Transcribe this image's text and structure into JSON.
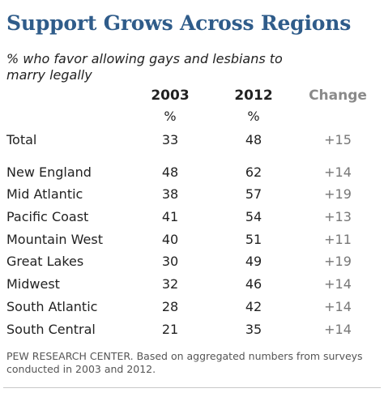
{
  "chart_data": {
    "type": "table",
    "title": "Support Grows Across Regions",
    "subtitle": "% who favor allowing gays and lesbians to marry legally",
    "columns": [
      "2003",
      "2012",
      "Change"
    ],
    "units": [
      "%",
      "%"
    ],
    "rows": [
      {
        "label": "Total",
        "v2003": "33",
        "v2012": "48",
        "change": "+15"
      },
      {
        "label": "New England",
        "v2003": "48",
        "v2012": "62",
        "change": "+14"
      },
      {
        "label": "Mid Atlantic",
        "v2003": "38",
        "v2012": "57",
        "change": "+19"
      },
      {
        "label": "Pacific Coast",
        "v2003": "41",
        "v2012": "54",
        "change": "+13"
      },
      {
        "label": "Mountain West",
        "v2003": "40",
        "v2012": "51",
        "change": "+11"
      },
      {
        "label": "Great Lakes",
        "v2003": "30",
        "v2012": "49",
        "change": "+19"
      },
      {
        "label": "Midwest",
        "v2003": "32",
        "v2012": "46",
        "change": "+14"
      },
      {
        "label": "South Atlantic",
        "v2003": "28",
        "v2012": "42",
        "change": "+14"
      },
      {
        "label": "South Central",
        "v2003": "21",
        "v2012": "35",
        "change": "+14"
      }
    ],
    "source": "PEW RESEARCH CENTER. Based on aggregated numbers from surveys conducted in 2003 and 2012."
  },
  "colors": {
    "title": "#2f5c8a",
    "change_header": "#8a8a8a",
    "change_values": "#777777"
  }
}
